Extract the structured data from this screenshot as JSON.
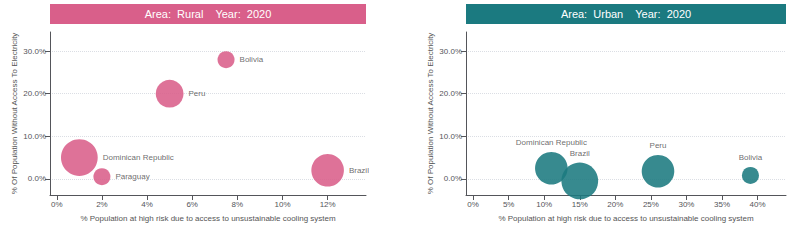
{
  "chart_data": [
    {
      "type": "scatter",
      "title": "Area:  Rural    Year:  2020",
      "x_label": "% Population at high risk due to access to unsustainable cooling system",
      "y_label": "% Of Population Without Access To Electricity",
      "color": "#d95f8a",
      "point_labels": [
        "Bolivia",
        "Peru",
        "Dominican Republic",
        "Paraguay",
        "Brazil"
      ],
      "x": [
        0.075,
        0.05,
        0.01,
        0.02,
        0.12
      ],
      "y": [
        0.28,
        0.2,
        0.05,
        0.005,
        0.02
      ],
      "sizes": [
        150,
        400,
        700,
        150,
        550
      ],
      "xlim": [
        -0.003,
        0.137
      ],
      "ylim": [
        -0.038,
        0.345
      ],
      "xticks": [
        {
          "value": 0.0,
          "label": "0%"
        },
        {
          "value": 0.02,
          "label": "2%"
        },
        {
          "value": 0.04,
          "label": "4%"
        },
        {
          "value": 0.06,
          "label": "6%"
        },
        {
          "value": 0.08,
          "label": "8%"
        },
        {
          "value": 0.1,
          "label": "10%"
        },
        {
          "value": 0.12,
          "label": "12%"
        }
      ],
      "yticks": [
        {
          "value": 0.0,
          "label": "0.0%"
        },
        {
          "value": 0.1,
          "label": "10.0%"
        },
        {
          "value": 0.2,
          "label": "20.0%"
        },
        {
          "value": 0.3,
          "label": "30.0%"
        }
      ],
      "grid": true
    },
    {
      "type": "scatter",
      "title": "Area:  Urban    Year:  2020",
      "x_label": "% Population at high risk due to access to unsustainable cooling system",
      "y_label": "% Of Population Without Access To Electricity",
      "color": "#1b7a80",
      "point_labels": [
        "Dominican Republic",
        "Brazil",
        "Peru",
        "Bolivia"
      ],
      "x": [
        0.11,
        0.15,
        0.26,
        0.39
      ],
      "y": [
        0.025,
        -0.005,
        0.018,
        0.008
      ],
      "sizes": [
        550,
        700,
        550,
        150
      ],
      "xlim": [
        -0.01,
        0.44
      ],
      "ylim": [
        -0.038,
        0.345
      ],
      "xticks": [
        {
          "value": 0.0,
          "label": "0%"
        },
        {
          "value": 0.05,
          "label": "5%"
        },
        {
          "value": 0.1,
          "label": "10%"
        },
        {
          "value": 0.15,
          "label": "15%"
        },
        {
          "value": 0.2,
          "label": "20%"
        },
        {
          "value": 0.25,
          "label": "25%"
        },
        {
          "value": 0.3,
          "label": "30%"
        },
        {
          "value": 0.35,
          "label": "35%"
        },
        {
          "value": 0.4,
          "label": "40%"
        }
      ],
      "yticks": [
        {
          "value": 0.0,
          "label": "0.0%"
        },
        {
          "value": 0.1,
          "label": "10.0%"
        },
        {
          "value": 0.2,
          "label": "20.0%"
        },
        {
          "value": 0.3,
          "label": "30.0%"
        }
      ],
      "grid": true
    }
  ]
}
